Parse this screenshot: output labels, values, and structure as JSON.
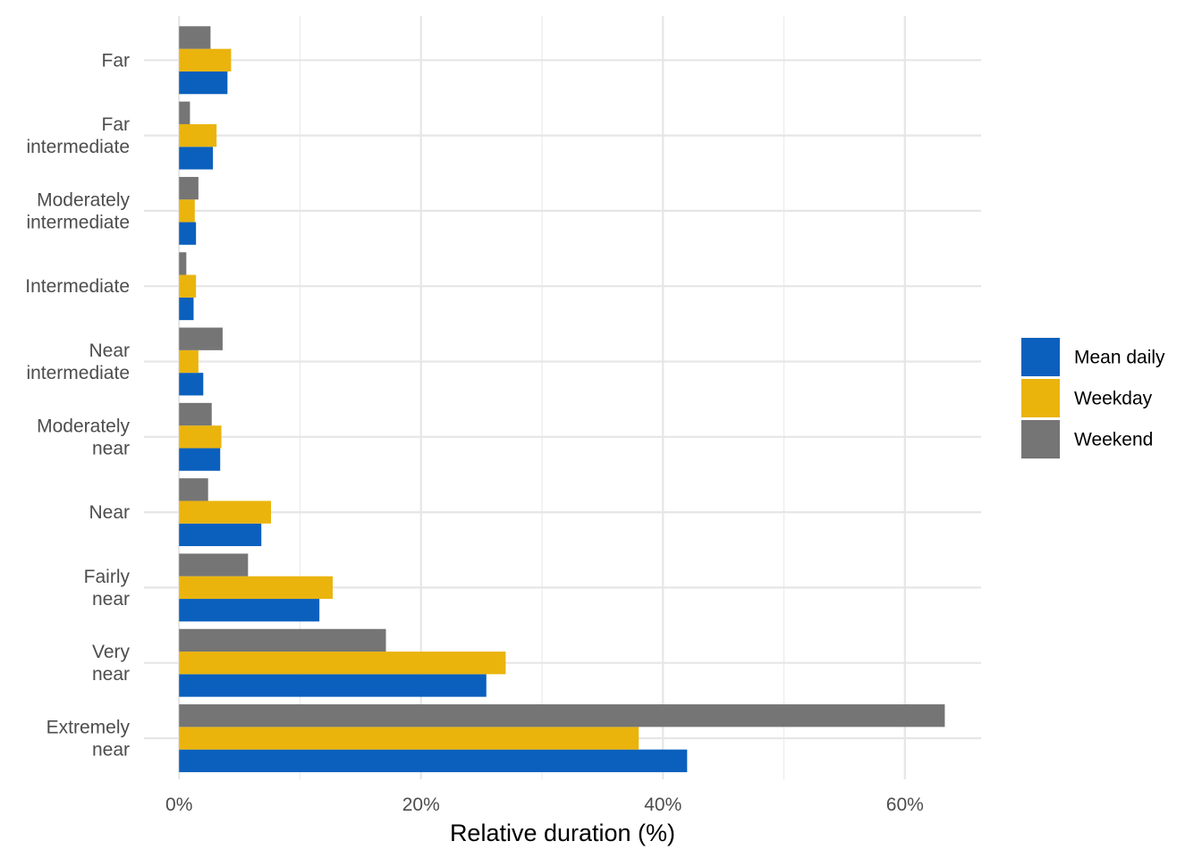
{
  "chart_data": {
    "type": "bar",
    "orientation": "horizontal",
    "categories": [
      [
        "Extremely",
        "near"
      ],
      [
        "Very",
        "near"
      ],
      [
        "Fairly",
        "near"
      ],
      [
        "Near"
      ],
      [
        "Moderately",
        "near"
      ],
      [
        "Near",
        "intermediate"
      ],
      [
        "Intermediate"
      ],
      [
        "Moderately",
        "intermediate"
      ],
      [
        "Far",
        "intermediate"
      ],
      [
        "Far"
      ]
    ],
    "series": [
      {
        "name": "Mean daily",
        "color": "#0b60bd",
        "values": [
          42.0,
          25.4,
          11.6,
          6.8,
          3.4,
          2.0,
          1.2,
          1.4,
          2.8,
          4.0
        ]
      },
      {
        "name": "Weekday",
        "color": "#eab40d",
        "values": [
          38.0,
          27.0,
          12.7,
          7.6,
          3.5,
          1.6,
          1.4,
          1.3,
          3.1,
          4.3
        ]
      },
      {
        "name": "Weekend",
        "color": "#757575",
        "values": [
          63.3,
          17.1,
          5.7,
          2.4,
          2.7,
          3.6,
          0.6,
          1.6,
          0.9,
          2.6
        ]
      }
    ],
    "xlabel": "Relative duration (%)",
    "ylabel": "",
    "xlim": [
      -2.9,
      66.3
    ],
    "xticks": [
      {
        "value": 0,
        "label": "0%"
      },
      {
        "value": 20,
        "label": "20%"
      },
      {
        "value": 40,
        "label": "40%"
      },
      {
        "value": 60,
        "label": "60%"
      }
    ],
    "x_minor_gridlines": [
      10,
      30,
      50
    ],
    "grid": true,
    "legend_position": "right"
  }
}
